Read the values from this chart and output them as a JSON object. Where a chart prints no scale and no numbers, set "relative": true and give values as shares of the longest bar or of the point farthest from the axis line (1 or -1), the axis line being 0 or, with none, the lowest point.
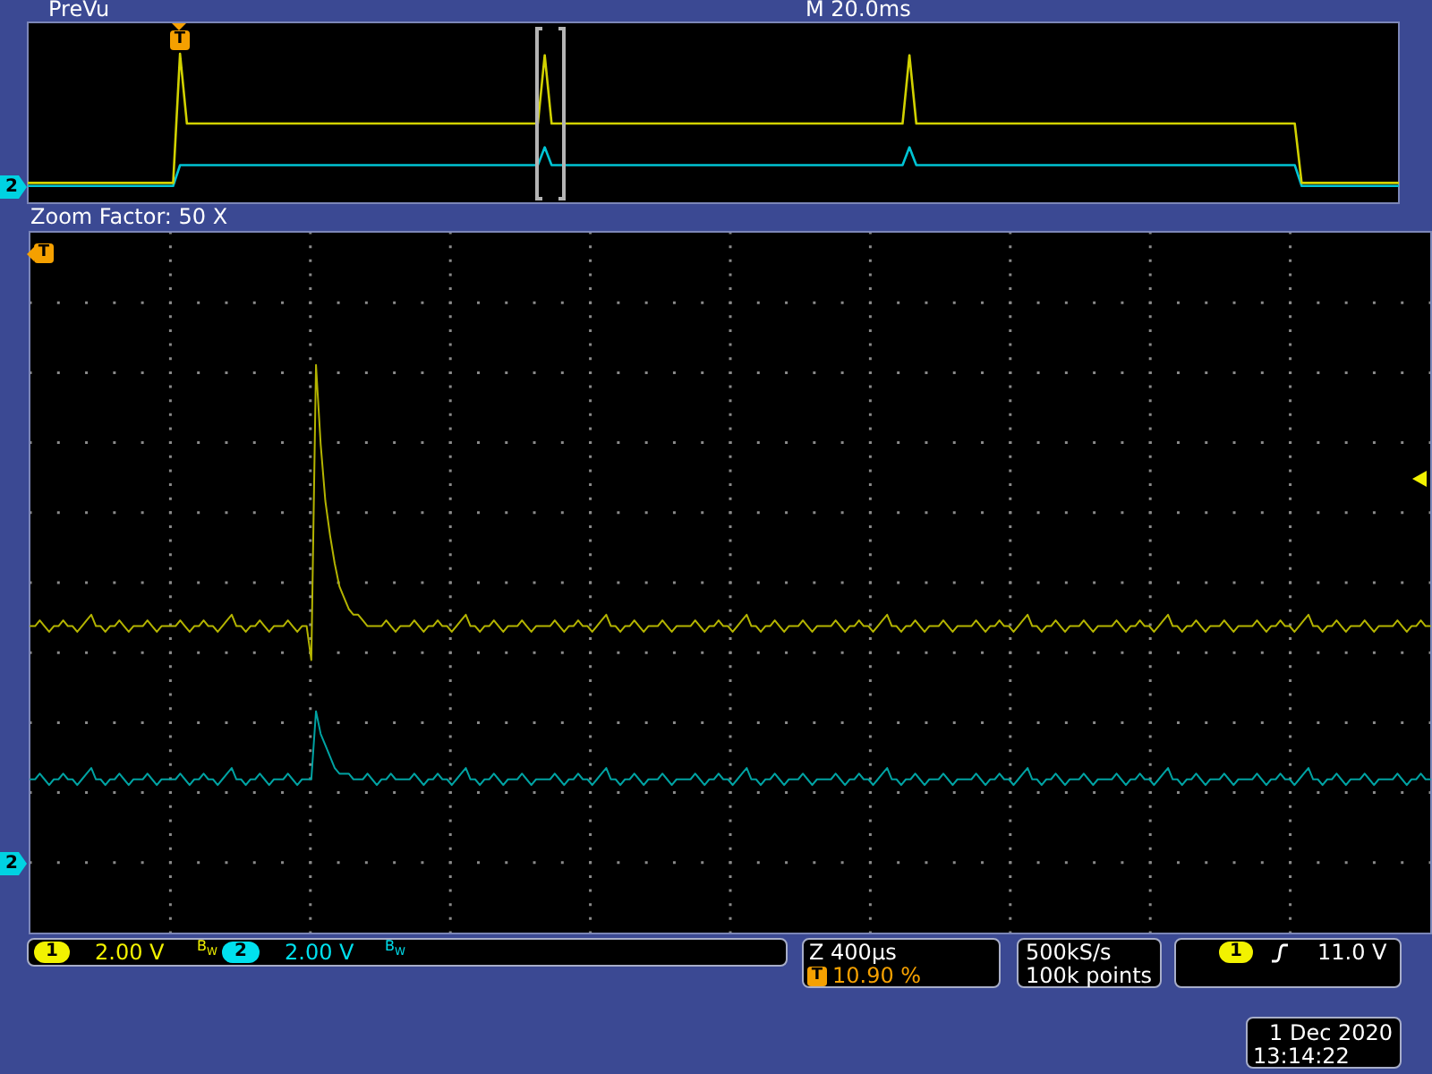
{
  "chart_data": [
    {
      "type": "line",
      "title": "PreVu",
      "relative": true,
      "categories": [
        null,
        null,
        null,
        null,
        null,
        null,
        null,
        null,
        null,
        null,
        null,
        null,
        null,
        null,
        null,
        null,
        null,
        null,
        null,
        null,
        null,
        null,
        null,
        null,
        null,
        null,
        null,
        null,
        null,
        null,
        null,
        null,
        null,
        null,
        null,
        null,
        null,
        null,
        null,
        null,
        null,
        null,
        null,
        null,
        null,
        null,
        null,
        null,
        null,
        null,
        null,
        null,
        null,
        null,
        null,
        null,
        null,
        null,
        null,
        null,
        null,
        null,
        null,
        null,
        null,
        null,
        null,
        null,
        null,
        null,
        null,
        null,
        null,
        null,
        null,
        null,
        null,
        null,
        null,
        null,
        null,
        null,
        null,
        null,
        null,
        null,
        null,
        null,
        null,
        null,
        null,
        null,
        null,
        null,
        null,
        null,
        null,
        null,
        null,
        null,
        null,
        null,
        null,
        null,
        null,
        null,
        null,
        null,
        null,
        null,
        null,
        null,
        null,
        null,
        null,
        null,
        null,
        null,
        null,
        null,
        null,
        null,
        null,
        null,
        null,
        null,
        null,
        null,
        null,
        null,
        null,
        null,
        null,
        null,
        null,
        null,
        null,
        null,
        null,
        null,
        null,
        null,
        null,
        null,
        null,
        null,
        null,
        null,
        null,
        null,
        null,
        null,
        null,
        null,
        null,
        null,
        null,
        null,
        null,
        null,
        null,
        null,
        null,
        null,
        null,
        null,
        null,
        null,
        null,
        null,
        null,
        null,
        null,
        null,
        null,
        null,
        null,
        null,
        null,
        null,
        null,
        null,
        null,
        null,
        null,
        null,
        null,
        null,
        null,
        null,
        null,
        null,
        null,
        null,
        null,
        null,
        null,
        null,
        null,
        null
      ],
      "series": [
        {
          "color": "#d2d200",
          "values": [
            0.13,
            0.13,
            0.13,
            0.13,
            0.13,
            0.13,
            0.13,
            0.13,
            0.13,
            0.13,
            0.13,
            0.13,
            0.13,
            0.13,
            0.13,
            0.13,
            0.13,
            0.13,
            0.13,
            0.13,
            0.13,
            0.13,
            1,
            0.53,
            0.53,
            0.53,
            0.53,
            0.53,
            0.53,
            0.53,
            0.53,
            0.53,
            0.53,
            0.53,
            0.53,
            0.53,
            0.53,
            0.53,
            0.53,
            0.53,
            0.53,
            0.53,
            0.53,
            0.53,
            0.53,
            0.53,
            0.53,
            0.53,
            0.53,
            0.53,
            0.53,
            0.53,
            0.53,
            0.53,
            0.53,
            0.53,
            0.53,
            0.53,
            0.53,
            0.53,
            0.53,
            0.53,
            0.53,
            0.53,
            0.53,
            0.53,
            0.53,
            0.53,
            0.53,
            0.53,
            0.53,
            0.53,
            0.53,
            0.53,
            0.53,
            0.99,
            0.53,
            0.53,
            0.53,
            0.53,
            0.53,
            0.53,
            0.53,
            0.53,
            0.53,
            0.53,
            0.53,
            0.53,
            0.53,
            0.53,
            0.53,
            0.53,
            0.53,
            0.53,
            0.53,
            0.53,
            0.53,
            0.53,
            0.53,
            0.53,
            0.53,
            0.53,
            0.53,
            0.53,
            0.53,
            0.53,
            0.53,
            0.53,
            0.53,
            0.53,
            0.53,
            0.53,
            0.53,
            0.53,
            0.53,
            0.53,
            0.53,
            0.53,
            0.53,
            0.53,
            0.53,
            0.53,
            0.53,
            0.53,
            0.53,
            0.53,
            0.53,
            0.53,
            0.99,
            0.53,
            0.53,
            0.53,
            0.53,
            0.53,
            0.53,
            0.53,
            0.53,
            0.53,
            0.53,
            0.53,
            0.53,
            0.53,
            0.53,
            0.53,
            0.53,
            0.53,
            0.53,
            0.53,
            0.53,
            0.53,
            0.53,
            0.53,
            0.53,
            0.53,
            0.53,
            0.53,
            0.53,
            0.53,
            0.53,
            0.53,
            0.53,
            0.53,
            0.53,
            0.53,
            0.53,
            0.53,
            0.53,
            0.53,
            0.53,
            0.53,
            0.53,
            0.53,
            0.53,
            0.53,
            0.53,
            0.53,
            0.53,
            0.53,
            0.53,
            0.53,
            0.53,
            0.53,
            0.53,
            0.53,
            0.53,
            0.13,
            0.13,
            0.13,
            0.13,
            0.13,
            0.13,
            0.13,
            0.13,
            0.13,
            0.13,
            0.13,
            0.13,
            0.13,
            0.13,
            0.13
          ]
        },
        {
          "color": "#00c4d4",
          "values": [
            0.11,
            0.11,
            0.11,
            0.11,
            0.11,
            0.11,
            0.11,
            0.11,
            0.11,
            0.11,
            0.11,
            0.11,
            0.11,
            0.11,
            0.11,
            0.11,
            0.11,
            0.11,
            0.11,
            0.11,
            0.11,
            0.11,
            0.25,
            0.25,
            0.25,
            0.25,
            0.25,
            0.25,
            0.25,
            0.25,
            0.25,
            0.25,
            0.25,
            0.25,
            0.25,
            0.25,
            0.25,
            0.25,
            0.25,
            0.25,
            0.25,
            0.25,
            0.25,
            0.25,
            0.25,
            0.25,
            0.25,
            0.25,
            0.25,
            0.25,
            0.25,
            0.25,
            0.25,
            0.25,
            0.25,
            0.25,
            0.25,
            0.25,
            0.25,
            0.25,
            0.25,
            0.25,
            0.25,
            0.25,
            0.25,
            0.25,
            0.25,
            0.25,
            0.25,
            0.25,
            0.25,
            0.25,
            0.25,
            0.25,
            0.25,
            0.37,
            0.25,
            0.25,
            0.25,
            0.25,
            0.25,
            0.25,
            0.25,
            0.25,
            0.25,
            0.25,
            0.25,
            0.25,
            0.25,
            0.25,
            0.25,
            0.25,
            0.25,
            0.25,
            0.25,
            0.25,
            0.25,
            0.25,
            0.25,
            0.25,
            0.25,
            0.25,
            0.25,
            0.25,
            0.25,
            0.25,
            0.25,
            0.25,
            0.25,
            0.25,
            0.25,
            0.25,
            0.25,
            0.25,
            0.25,
            0.25,
            0.25,
            0.25,
            0.25,
            0.25,
            0.25,
            0.25,
            0.25,
            0.25,
            0.25,
            0.25,
            0.25,
            0.25,
            0.37,
            0.25,
            0.25,
            0.25,
            0.25,
            0.25,
            0.25,
            0.25,
            0.25,
            0.25,
            0.25,
            0.25,
            0.25,
            0.25,
            0.25,
            0.25,
            0.25,
            0.25,
            0.25,
            0.25,
            0.25,
            0.25,
            0.25,
            0.25,
            0.25,
            0.25,
            0.25,
            0.25,
            0.25,
            0.25,
            0.25,
            0.25,
            0.25,
            0.25,
            0.25,
            0.25,
            0.25,
            0.25,
            0.25,
            0.25,
            0.25,
            0.25,
            0.25,
            0.25,
            0.25,
            0.25,
            0.25,
            0.25,
            0.25,
            0.25,
            0.25,
            0.25,
            0.25,
            0.25,
            0.25,
            0.25,
            0.25,
            0.11,
            0.11,
            0.11,
            0.11,
            0.11,
            0.11,
            0.11,
            0.11,
            0.11,
            0.11,
            0.11,
            0.11,
            0.11,
            0.11,
            0.11
          ]
        }
      ],
      "annotations": [
        "M 20.0ms",
        "T",
        "2"
      ]
    },
    {
      "type": "line",
      "title": "Zoom Factor: 50 X",
      "relative": true,
      "grid": true,
      "categories": [
        null,
        null,
        null,
        null,
        null,
        null,
        null,
        null,
        null,
        null,
        null,
        null,
        null,
        null,
        null,
        null,
        null,
        null,
        null,
        null,
        null,
        null,
        null,
        null,
        null,
        null,
        null,
        null,
        null,
        null,
        null,
        null,
        null,
        null,
        null,
        null,
        null,
        null,
        null,
        null,
        null,
        null,
        null,
        null,
        null,
        null,
        null,
        null,
        null,
        null,
        null,
        null,
        null,
        null,
        null,
        null,
        null,
        null,
        null,
        null,
        null,
        null,
        null,
        null,
        null,
        null,
        null,
        null,
        null,
        null,
        null,
        null,
        null,
        null,
        null,
        null,
        null,
        null,
        null,
        null,
        null,
        null,
        null,
        null,
        null,
        null,
        null,
        null,
        null,
        null,
        null,
        null,
        null,
        null,
        null,
        null,
        null,
        null,
        null,
        null,
        null,
        null,
        null,
        null,
        null,
        null,
        null,
        null,
        null,
        null,
        null,
        null,
        null,
        null,
        null,
        null,
        null,
        null,
        null,
        null,
        null,
        null,
        null,
        null,
        null,
        null,
        null,
        null,
        null,
        null,
        null,
        null,
        null,
        null,
        null,
        null,
        null,
        null,
        null,
        null,
        null,
        null,
        null,
        null,
        null,
        null,
        null,
        null,
        null,
        null,
        null,
        null,
        null,
        null,
        null,
        null,
        null,
        null,
        null,
        null,
        null,
        null,
        null,
        null,
        null,
        null,
        null,
        null,
        null,
        null,
        null,
        null,
        null,
        null,
        null,
        null,
        null,
        null,
        null,
        null,
        null,
        null,
        null,
        null,
        null,
        null,
        null,
        null,
        null,
        null,
        null,
        null,
        null,
        null,
        null,
        null,
        null,
        null,
        null,
        null,
        null,
        null,
        null,
        null,
        null,
        null,
        null,
        null,
        null,
        null,
        null,
        null,
        null,
        null,
        null,
        null,
        null,
        null,
        null,
        null,
        null,
        null,
        null,
        null,
        null,
        null,
        null,
        null,
        null,
        null,
        null,
        null,
        null,
        null,
        null,
        null,
        null,
        null,
        null,
        null,
        null,
        null,
        null,
        null,
        null,
        null,
        null,
        null,
        null,
        null,
        null,
        null,
        null,
        null,
        null,
        null,
        null,
        null,
        null,
        null,
        null,
        null,
        null,
        null,
        null,
        null,
        null,
        null,
        null,
        null,
        null,
        null,
        null,
        null,
        null,
        null,
        null,
        null,
        null,
        null,
        null,
        null,
        null,
        null,
        null,
        null,
        null,
        null,
        null,
        null,
        null,
        null,
        null,
        null,
        null,
        null,
        null,
        null,
        null,
        null
      ],
      "series": [
        {
          "color": "#b4b400",
          "values": [
            0.54,
            0.54,
            0.55,
            0.54,
            0.53,
            0.54,
            0.54,
            0.55,
            0.54,
            0.54,
            0.53,
            0.54,
            0.55,
            0.56,
            0.54,
            0.54,
            0.53,
            0.54,
            0.54,
            0.55,
            0.54,
            0.53,
            0.54,
            0.54,
            0.54,
            0.55,
            0.54,
            0.53,
            0.54,
            0.54,
            0.54,
            0.54,
            0.55,
            0.54,
            0.53,
            0.54,
            0.54,
            0.55,
            0.54,
            0.54,
            0.53,
            0.54,
            0.55,
            0.56,
            0.54,
            0.54,
            0.53,
            0.54,
            0.54,
            0.55,
            0.54,
            0.53,
            0.54,
            0.54,
            0.54,
            0.55,
            0.54,
            0.53,
            0.54,
            0.54,
            0.48,
            1,
            0.86,
            0.76,
            0.7,
            0.65,
            0.61,
            0.59,
            0.57,
            0.56,
            0.56,
            0.55,
            0.54,
            0.54,
            0.54,
            0.54,
            0.55,
            0.54,
            0.53,
            0.54,
            0.54,
            0.54,
            0.55,
            0.54,
            0.53,
            0.54,
            0.54,
            0.55,
            0.54,
            0.54,
            0.53,
            0.54,
            0.55,
            0.56,
            0.54,
            0.54,
            0.53,
            0.54,
            0.54,
            0.55,
            0.54,
            0.53,
            0.54,
            0.54,
            0.54,
            0.55,
            0.54,
            0.53,
            0.54,
            0.54,
            0.54,
            0.54,
            0.55,
            0.54,
            0.53,
            0.54,
            0.54,
            0.55,
            0.54,
            0.54,
            0.53,
            0.54,
            0.55,
            0.56,
            0.54,
            0.54,
            0.53,
            0.54,
            0.54,
            0.55,
            0.54,
            0.53,
            0.54,
            0.54,
            0.54,
            0.55,
            0.54,
            0.53,
            0.54,
            0.54,
            0.54,
            0.54,
            0.55,
            0.54,
            0.53,
            0.54,
            0.54,
            0.55,
            0.54,
            0.54,
            0.53,
            0.54,
            0.55,
            0.56,
            0.54,
            0.54,
            0.53,
            0.54,
            0.54,
            0.55,
            0.54,
            0.53,
            0.54,
            0.54,
            0.54,
            0.55,
            0.54,
            0.53,
            0.54,
            0.54,
            0.54,
            0.54,
            0.55,
            0.54,
            0.53,
            0.54,
            0.54,
            0.55,
            0.54,
            0.54,
            0.53,
            0.54,
            0.55,
            0.56,
            0.54,
            0.54,
            0.53,
            0.54,
            0.54,
            0.55,
            0.54,
            0.53,
            0.54,
            0.54,
            0.54,
            0.55,
            0.54,
            0.53,
            0.54,
            0.54,
            0.54,
            0.54,
            0.55,
            0.54,
            0.53,
            0.54,
            0.54,
            0.55,
            0.54,
            0.54,
            0.53,
            0.54,
            0.55,
            0.56,
            0.54,
            0.54,
            0.53,
            0.54,
            0.54,
            0.55,
            0.54,
            0.53,
            0.54,
            0.54,
            0.54,
            0.55,
            0.54,
            0.53,
            0.54,
            0.54,
            0.54,
            0.54,
            0.55,
            0.54,
            0.53,
            0.54,
            0.54,
            0.55,
            0.54,
            0.54,
            0.53,
            0.54,
            0.55,
            0.56,
            0.54,
            0.54,
            0.53,
            0.54,
            0.54,
            0.55,
            0.54,
            0.53,
            0.54,
            0.54,
            0.54,
            0.55,
            0.54,
            0.53,
            0.54,
            0.54,
            0.54,
            0.54,
            0.55,
            0.54,
            0.53,
            0.54,
            0.54,
            0.55,
            0.54,
            0.54,
            0.53,
            0.54,
            0.55,
            0.56,
            0.54,
            0.54,
            0.53,
            0.54,
            0.54,
            0.55,
            0.54,
            0.53,
            0.54,
            0.54,
            0.54,
            0.55,
            0.54,
            0.53,
            0.54,
            0.54,
            0.54,
            0.54,
            0.55,
            0.54,
            0.53,
            0.54,
            0.54,
            0.55,
            0.54,
            0.54
          ]
        },
        {
          "color": "#00a3a3",
          "values": [
            0.27,
            0.27,
            0.28,
            0.27,
            0.26,
            0.27,
            0.27,
            0.28,
            0.27,
            0.27,
            0.26,
            0.27,
            0.28,
            0.29,
            0.27,
            0.27,
            0.26,
            0.27,
            0.27,
            0.28,
            0.27,
            0.26,
            0.27,
            0.27,
            0.27,
            0.28,
            0.27,
            0.26,
            0.27,
            0.27,
            0.27,
            0.27,
            0.28,
            0.27,
            0.26,
            0.27,
            0.27,
            0.28,
            0.27,
            0.27,
            0.26,
            0.27,
            0.28,
            0.29,
            0.27,
            0.27,
            0.26,
            0.27,
            0.27,
            0.28,
            0.27,
            0.26,
            0.27,
            0.27,
            0.27,
            0.28,
            0.27,
            0.26,
            0.27,
            0.27,
            0.27,
            0.39,
            0.35,
            0.33,
            0.31,
            0.29,
            0.28,
            0.28,
            0.28,
            0.27,
            0.27,
            0.27,
            0.28,
            0.27,
            0.26,
            0.27,
            0.27,
            0.28,
            0.27,
            0.27,
            0.27,
            0.27,
            0.28,
            0.27,
            0.26,
            0.27,
            0.27,
            0.28,
            0.27,
            0.27,
            0.26,
            0.27,
            0.28,
            0.29,
            0.27,
            0.27,
            0.26,
            0.27,
            0.27,
            0.28,
            0.27,
            0.26,
            0.27,
            0.27,
            0.27,
            0.28,
            0.27,
            0.26,
            0.27,
            0.27,
            0.27,
            0.27,
            0.28,
            0.27,
            0.26,
            0.27,
            0.27,
            0.28,
            0.27,
            0.27,
            0.26,
            0.27,
            0.28,
            0.29,
            0.27,
            0.27,
            0.26,
            0.27,
            0.27,
            0.28,
            0.27,
            0.26,
            0.27,
            0.27,
            0.27,
            0.28,
            0.27,
            0.26,
            0.27,
            0.27,
            0.27,
            0.27,
            0.28,
            0.27,
            0.26,
            0.27,
            0.27,
            0.28,
            0.27,
            0.27,
            0.26,
            0.27,
            0.28,
            0.29,
            0.27,
            0.27,
            0.26,
            0.27,
            0.27,
            0.28,
            0.27,
            0.26,
            0.27,
            0.27,
            0.27,
            0.28,
            0.27,
            0.26,
            0.27,
            0.27,
            0.27,
            0.27,
            0.28,
            0.27,
            0.26,
            0.27,
            0.27,
            0.28,
            0.27,
            0.27,
            0.26,
            0.27,
            0.28,
            0.29,
            0.27,
            0.27,
            0.26,
            0.27,
            0.27,
            0.28,
            0.27,
            0.26,
            0.27,
            0.27,
            0.27,
            0.28,
            0.27,
            0.26,
            0.27,
            0.27,
            0.27,
            0.27,
            0.28,
            0.27,
            0.26,
            0.27,
            0.27,
            0.28,
            0.27,
            0.27,
            0.26,
            0.27,
            0.28,
            0.29,
            0.27,
            0.27,
            0.26,
            0.27,
            0.27,
            0.28,
            0.27,
            0.26,
            0.27,
            0.27,
            0.27,
            0.28,
            0.27,
            0.26,
            0.27,
            0.27,
            0.27,
            0.27,
            0.28,
            0.27,
            0.26,
            0.27,
            0.27,
            0.28,
            0.27,
            0.27,
            0.26,
            0.27,
            0.28,
            0.29,
            0.27,
            0.27,
            0.26,
            0.27,
            0.27,
            0.28,
            0.27,
            0.26,
            0.27,
            0.27,
            0.27,
            0.28,
            0.27,
            0.26,
            0.27,
            0.27,
            0.27,
            0.27,
            0.28,
            0.27,
            0.26,
            0.27,
            0.27,
            0.28,
            0.27,
            0.27,
            0.26,
            0.27,
            0.28,
            0.29,
            0.27,
            0.27,
            0.26,
            0.27,
            0.27,
            0.28,
            0.27,
            0.26,
            0.27,
            0.27,
            0.27,
            0.28,
            0.27,
            0.26,
            0.27,
            0.27,
            0.27,
            0.27,
            0.28,
            0.27,
            0.26,
            0.27,
            0.27,
            0.28,
            0.27,
            0.27
          ]
        }
      ],
      "annotations": [
        "T",
        "2",
        "1",
        "2.00 V",
        "B$_{W}$",
        "2",
        "2.00 V",
        "B$_{W}$",
        "Z 400µs",
        "T",
        "10.90 %",
        "500kS/s",
        "100k points",
        "1",
        "11.0 V",
        "1 Dec 2020",
        "13:14:22"
      ]
    }
  ]
}
